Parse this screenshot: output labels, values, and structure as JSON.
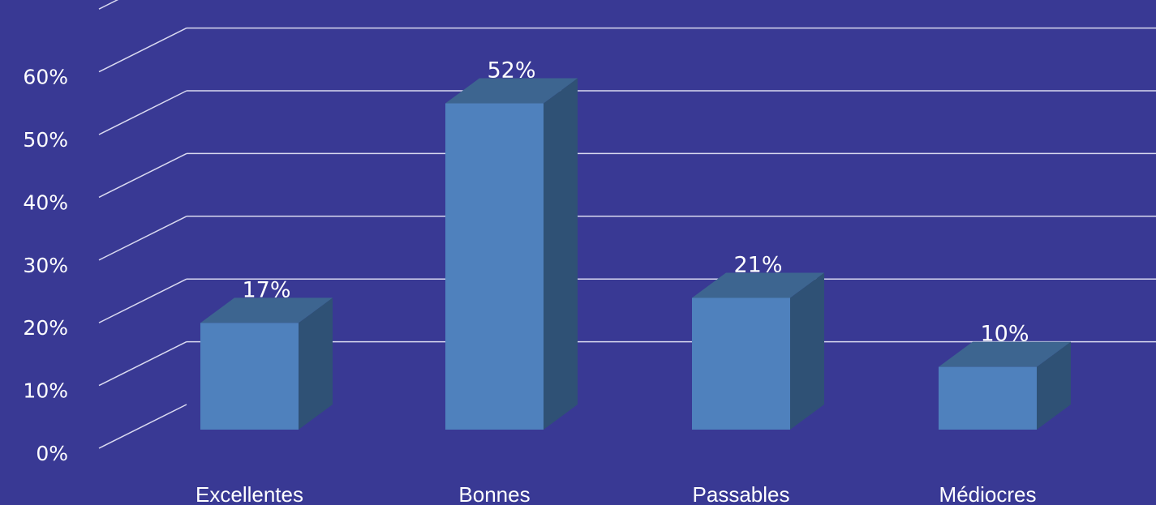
{
  "chart_data": {
    "type": "bar",
    "title": "",
    "xlabel": "",
    "ylabel": "",
    "categories": [
      "Excellentes",
      "Bonnes",
      "Passables",
      "Médiocres"
    ],
    "values": [
      17,
      52,
      21,
      10
    ],
    "data_labels": [
      "17%",
      "52%",
      "21%",
      "10%"
    ],
    "ylim": [
      0,
      70
    ],
    "y_ticks": [
      "0%",
      "10%",
      "20%",
      "30%",
      "40%",
      "50%",
      "60%"
    ],
    "grid": true,
    "style": "3d-column",
    "colors": {
      "background": "#393994",
      "bar_front": "#4f81bd",
      "bar_side": "#2f5175",
      "bar_top": "#3d6590",
      "grid": "#d9d9f0",
      "text": "#ffffff"
    }
  }
}
